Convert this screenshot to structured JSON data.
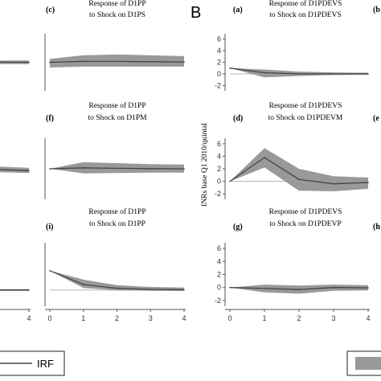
{
  "figure": {
    "panel_letter_B": "B",
    "ylabel_B": "INRs base Q1 2010/quintal",
    "legend": {
      "irf_label": "IRF"
    }
  },
  "colors": {
    "band": "#999999",
    "line": "#444444",
    "zero": "#b5b5b5",
    "axis": "#555555"
  },
  "chart_data": [
    {
      "type": "area",
      "label": "(c)",
      "title_lines": [
        "Response of D1PP",
        "to Shock on D1PS"
      ],
      "x": [
        0,
        1,
        2,
        3,
        4
      ],
      "irf": [
        0.0,
        0.05,
        0.05,
        0.03,
        0.02
      ],
      "lower": [
        -0.3,
        -0.25,
        -0.25,
        -0.25,
        -0.25
      ],
      "upper": [
        0.2,
        0.4,
        0.45,
        0.4,
        0.35
      ],
      "ylim": [
        -1.5,
        1.5
      ],
      "xtick_labels": [],
      "ytick_labels": [],
      "ytick_values": []
    },
    {
      "type": "area",
      "label": "(f)",
      "title_lines": [
        "Response of D1PP",
        "to Shock on D1PM"
      ],
      "x": [
        0,
        1,
        2,
        3,
        4
      ],
      "irf": [
        0.0,
        0.1,
        0.05,
        0.02,
        0.0
      ],
      "lower": [
        0.0,
        -0.5,
        -0.45,
        -0.4,
        -0.4
      ],
      "upper": [
        0.0,
        0.7,
        0.6,
        0.5,
        0.45
      ],
      "ylim": [
        -3,
        3
      ],
      "xtick_labels": [],
      "ytick_labels": [],
      "ytick_values": []
    },
    {
      "type": "area",
      "label": "(i)",
      "title_lines": [
        "Response of D1PP",
        "to Shock on D1PP"
      ],
      "x": [
        0,
        1,
        2,
        3,
        4
      ],
      "irf": [
        2.8,
        0.8,
        0.25,
        0.1,
        0.05
      ],
      "lower": [
        2.8,
        0.3,
        -0.05,
        -0.1,
        -0.15
      ],
      "upper": [
        2.8,
        1.5,
        0.7,
        0.45,
        0.35
      ],
      "ylim": [
        -2,
        6.5
      ],
      "xtick_labels": [
        "0",
        "1",
        "2",
        "3",
        "4"
      ],
      "ytick_labels": [],
      "ytick_values": []
    },
    {
      "type": "area",
      "label": "(a)",
      "title_lines": [
        "Response of D1PDEVS",
        "to Shock on D1PDEVS"
      ],
      "x": [
        0,
        1,
        2,
        3,
        4
      ],
      "irf": [
        1.0,
        0.2,
        0.0,
        0.0,
        0.0
      ],
      "lower": [
        1.0,
        -0.6,
        -0.35,
        -0.2,
        -0.15
      ],
      "upper": [
        1.0,
        0.75,
        0.4,
        0.25,
        0.2
      ],
      "ylim": [
        -2.5,
        6.5
      ],
      "xtick_labels": [],
      "ytick_labels": [
        "-2",
        "0",
        "2",
        "4",
        "6"
      ],
      "ytick_values": [
        -2,
        0,
        2,
        4,
        6
      ]
    },
    {
      "type": "area",
      "label": "(d)",
      "title_lines": [
        "Response of D1PDEVS",
        "to Shock on D1PDEVM"
      ],
      "x": [
        0,
        1,
        2,
        3,
        4
      ],
      "irf": [
        0.0,
        3.8,
        0.3,
        -0.4,
        -0.2
      ],
      "lower": [
        0.0,
        2.2,
        -1.5,
        -1.6,
        -1.2
      ],
      "upper": [
        0.0,
        5.3,
        2.0,
        0.8,
        0.6
      ],
      "ylim": [
        -2.5,
        6.5
      ],
      "xtick_labels": [],
      "ytick_labels": [
        "-2",
        "0",
        "2",
        "4",
        "6"
      ],
      "ytick_values": [
        -2,
        0,
        2,
        4,
        6
      ]
    },
    {
      "type": "area",
      "label": "(g)",
      "title_lines": [
        "Response of D1PDEVS",
        "to Shock on D1PDEVP"
      ],
      "x": [
        0,
        1,
        2,
        3,
        4
      ],
      "irf": [
        0.0,
        -0.15,
        -0.3,
        0.0,
        -0.05
      ],
      "lower": [
        0.0,
        -0.75,
        -0.95,
        -0.5,
        -0.45
      ],
      "upper": [
        0.0,
        0.45,
        0.3,
        0.45,
        0.35
      ],
      "ylim": [
        -2.5,
        6.5
      ],
      "xtick_labels": [
        "0",
        "1",
        "2",
        "3",
        "4"
      ],
      "ytick_labels": [
        "-2",
        "0",
        "2",
        "4",
        "6"
      ],
      "ytick_values": [
        -2,
        0,
        2,
        4,
        6
      ]
    }
  ],
  "partial_panels": [
    {
      "irf": [
        0.02,
        0.01,
        0.0
      ],
      "lower": [
        -0.1,
        -0.1,
        -0.1
      ],
      "upper": [
        0.1,
        0.1,
        0.1
      ],
      "ylim": [
        -1.5,
        1.5
      ],
      "xtick_labels": []
    },
    {
      "irf": [
        0.25,
        0.0,
        -0.2
      ],
      "lower": [
        0.0,
        -0.3,
        -0.45
      ],
      "upper": [
        0.45,
        0.3,
        0.1
      ],
      "ylim": [
        -3,
        3
      ],
      "xtick_labels": []
    },
    {
      "irf": [
        0.0,
        0.0,
        0.0
      ],
      "lower": [
        -0.12,
        -0.12,
        -0.12
      ],
      "upper": [
        0.12,
        0.12,
        0.12
      ],
      "ylim": [
        -2,
        6.5
      ],
      "xtick_labels": [
        "4"
      ]
    }
  ],
  "edge_labels": [
    {
      "text": "(b"
    },
    {
      "text": "(e"
    },
    {
      "text": "(h"
    }
  ]
}
